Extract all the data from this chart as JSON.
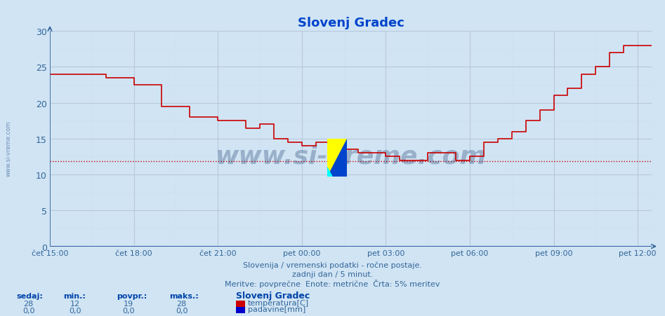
{
  "title": "Slovenj Gradec",
  "bg_color": "#d0e4f4",
  "plot_bg_color": "#d0e4f4",
  "grid_color_major": "#b8c8dc",
  "grid_color_minor": "#c8d8e8",
  "temp_color": "#cc0000",
  "precip_color": "#0000cc",
  "avg_line_color": "#cc0000",
  "avg_line_value": 11.9,
  "axis_color": "#336699",
  "x_tick_labels": [
    "čet 15:00",
    "čet 18:00",
    "čet 21:00",
    "pet 00:00",
    "pet 03:00",
    "pet 06:00",
    "pet 09:00",
    "pet 12:00"
  ],
  "x_tick_positions": [
    0,
    180,
    360,
    540,
    720,
    900,
    1080,
    1260
  ],
  "xlim": [
    0,
    1290
  ],
  "ylim": [
    0,
    30
  ],
  "yticks": [
    0,
    5,
    10,
    15,
    20,
    25,
    30
  ],
  "footer_line1": "Slovenija / vremenski podatki - ročne postaje.",
  "footer_line2": "zadnji dan / 5 minut.",
  "footer_line3": "Meritve: povprečne  Enote: metrične  Črta: 5% meritev",
  "legend_title": "Slovenj Gradec",
  "legend_temp": "temperatura[C]",
  "legend_precip": "padavine[mm]",
  "stat_labels": [
    "sedaj:",
    "min.:",
    "povpr.:",
    "maks.:"
  ],
  "stat_temp": [
    "28",
    "12",
    "19",
    "28"
  ],
  "stat_precip": [
    "0,0",
    "0,0",
    "0,0",
    "0,0"
  ],
  "watermark": "www.si-vreme.com",
  "temp_data": [
    [
      0,
      24
    ],
    [
      120,
      24
    ],
    [
      120,
      23.5
    ],
    [
      180,
      23.5
    ],
    [
      180,
      22.5
    ],
    [
      240,
      22.5
    ],
    [
      240,
      19.5
    ],
    [
      300,
      19.5
    ],
    [
      300,
      18
    ],
    [
      360,
      18
    ],
    [
      360,
      17.5
    ],
    [
      420,
      17.5
    ],
    [
      420,
      16.5
    ],
    [
      450,
      16.5
    ],
    [
      450,
      17
    ],
    [
      480,
      17
    ],
    [
      480,
      15
    ],
    [
      510,
      15
    ],
    [
      510,
      14.5
    ],
    [
      540,
      14.5
    ],
    [
      540,
      14
    ],
    [
      570,
      14
    ],
    [
      570,
      14.5
    ],
    [
      600,
      14.5
    ],
    [
      600,
      14
    ],
    [
      630,
      14
    ],
    [
      630,
      13.5
    ],
    [
      660,
      13.5
    ],
    [
      660,
      13
    ],
    [
      720,
      13
    ],
    [
      720,
      12.5
    ],
    [
      750,
      12.5
    ],
    [
      750,
      12
    ],
    [
      810,
      12
    ],
    [
      810,
      13
    ],
    [
      870,
      13
    ],
    [
      870,
      12
    ],
    [
      900,
      12
    ],
    [
      900,
      12.5
    ],
    [
      930,
      12.5
    ],
    [
      930,
      14.5
    ],
    [
      960,
      14.5
    ],
    [
      960,
      15
    ],
    [
      990,
      15
    ],
    [
      990,
      16
    ],
    [
      1020,
      16
    ],
    [
      1020,
      17.5
    ],
    [
      1050,
      17.5
    ],
    [
      1050,
      19
    ],
    [
      1080,
      19
    ],
    [
      1080,
      21
    ],
    [
      1110,
      21
    ],
    [
      1110,
      22
    ],
    [
      1140,
      22
    ],
    [
      1140,
      24
    ],
    [
      1170,
      24
    ],
    [
      1170,
      25
    ],
    [
      1200,
      25
    ],
    [
      1200,
      27
    ],
    [
      1230,
      27
    ],
    [
      1230,
      28
    ],
    [
      1290,
      28
    ]
  ]
}
